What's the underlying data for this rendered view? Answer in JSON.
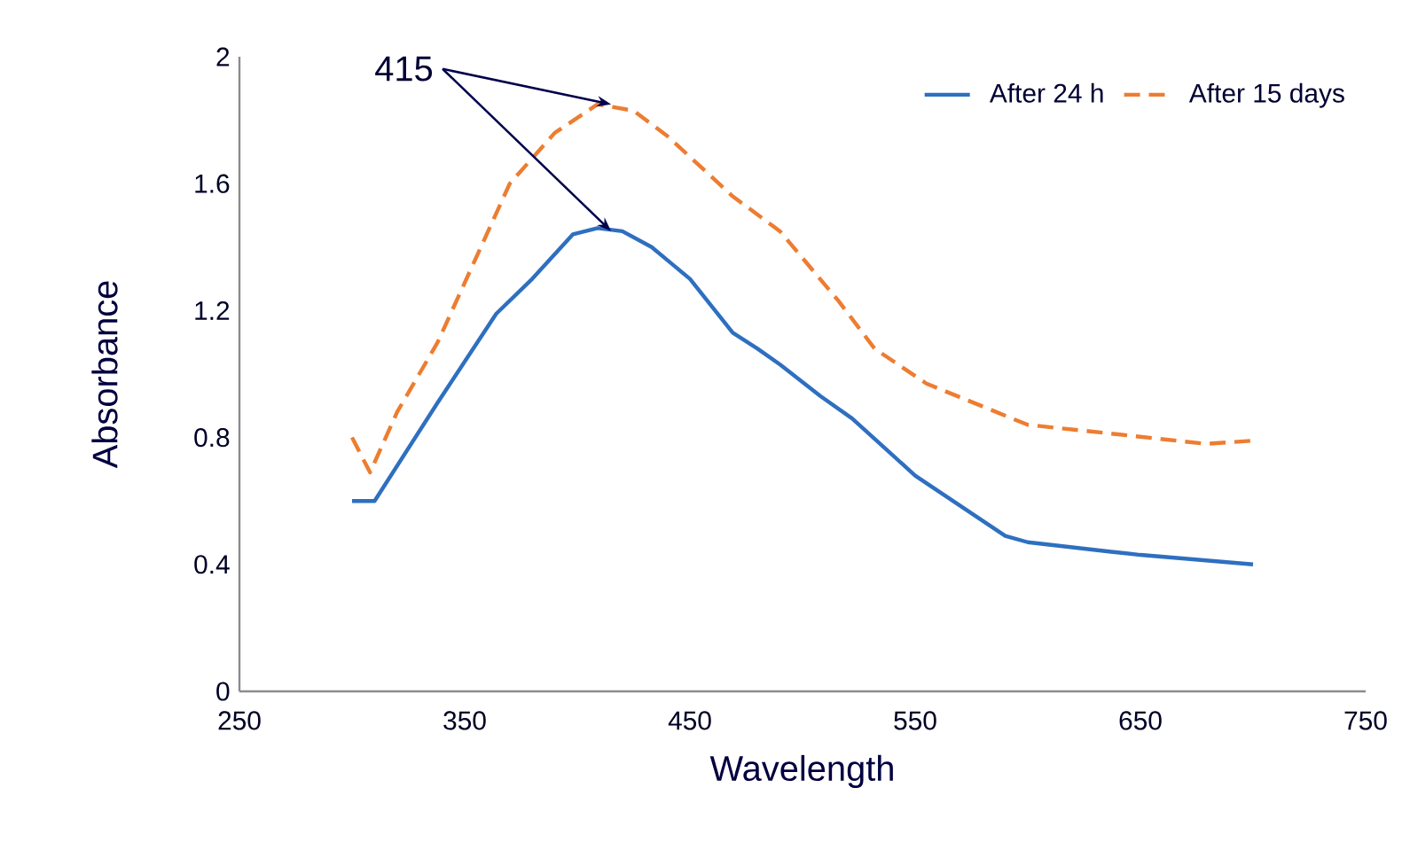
{
  "chart_data": {
    "type": "line",
    "xlabel": "Wavelength",
    "ylabel": "Absorbance",
    "xlim": [
      250,
      750
    ],
    "xticks": [
      250,
      350,
      450,
      550,
      650,
      750
    ],
    "ylim": [
      0,
      2
    ],
    "yticks": [
      0,
      0.4,
      0.8,
      1.2,
      1.6,
      2
    ],
    "legend": "top right",
    "grid": false,
    "marker": "none",
    "annotations": [
      {
        "text": "415",
        "x": 415,
        "y": 1.85
      }
    ],
    "series": [
      {
        "name": "After 24 h",
        "color": "#2e6fc0",
        "line_style": "solid",
        "x": [
          300,
          310,
          338,
          364,
          380,
          398,
          409,
          420,
          433,
          450,
          469,
          480,
          490,
          508,
          522,
          550,
          590,
          600,
          637,
          650,
          700
        ],
        "values": [
          0.6,
          0.6,
          0.91,
          1.19,
          1.3,
          1.44,
          1.46,
          1.45,
          1.4,
          1.3,
          1.13,
          1.08,
          1.03,
          0.93,
          0.86,
          0.68,
          0.49,
          0.47,
          0.44,
          0.43,
          0.4
        ]
      },
      {
        "name": "After 15 days",
        "color": "#ed7d31",
        "line_style": "dashed",
        "x": [
          300,
          308,
          320,
          338,
          354,
          370,
          390,
          409,
          425,
          440,
          469,
          490,
          516,
          532,
          555,
          600,
          640,
          679,
          700
        ],
        "values": [
          0.8,
          0.69,
          0.88,
          1.1,
          1.35,
          1.6,
          1.76,
          1.85,
          1.83,
          1.75,
          1.56,
          1.45,
          1.23,
          1.08,
          0.97,
          0.84,
          0.81,
          0.78,
          0.79
        ]
      }
    ]
  }
}
